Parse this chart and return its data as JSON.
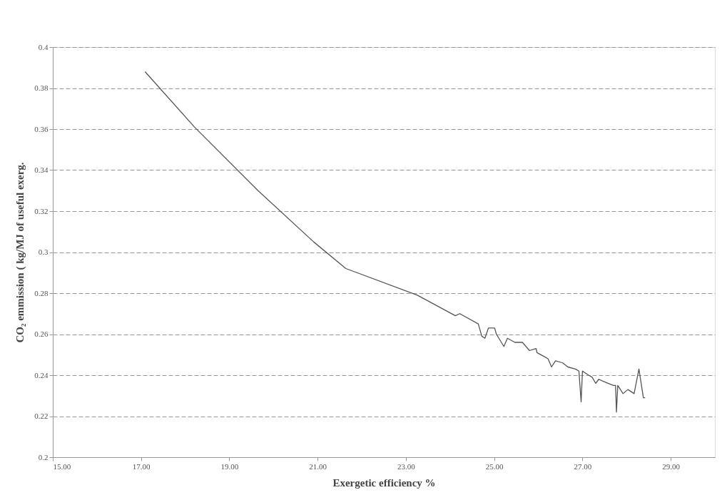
{
  "chart_data": {
    "type": "line",
    "xlabel": "Exergetic efficiency %",
    "ylabel": "CO₂ emmission ( kg/MJ of useful exerg.",
    "x": [
      17.09,
      18.21,
      19.65,
      20.91,
      21.64,
      23.26,
      24.12,
      24.22,
      24.64,
      24.72,
      24.79,
      24.87,
      25.01,
      25.05,
      25.22,
      25.3,
      25.47,
      25.64,
      25.8,
      25.95,
      25.97,
      26.14,
      26.22,
      26.3,
      26.39,
      26.55,
      26.67,
      26.84,
      26.92,
      26.97,
      27.0,
      27.14,
      27.22,
      27.3,
      27.37,
      27.47,
      27.7,
      27.75,
      27.77,
      27.8,
      27.92,
      28.03,
      28.17,
      28.28,
      28.38,
      28.42
    ],
    "series": [
      {
        "color": "#555555",
        "values": [
          0.388,
          0.361,
          0.33,
          0.305,
          0.292,
          0.279,
          0.269,
          0.27,
          0.265,
          0.259,
          0.258,
          0.263,
          0.263,
          0.26,
          0.254,
          0.258,
          0.256,
          0.256,
          0.252,
          0.253,
          0.251,
          0.249,
          0.248,
          0.244,
          0.247,
          0.246,
          0.244,
          0.243,
          0.242,
          0.227,
          0.242,
          0.24,
          0.239,
          0.236,
          0.238,
          0.237,
          0.235,
          0.235,
          0.222,
          0.235,
          0.231,
          0.233,
          0.231,
          0.243,
          0.229,
          0.229
        ]
      }
    ],
    "xlim": [
      15,
      30
    ],
    "xticks": [
      {
        "value": 15,
        "label": "15.00"
      },
      {
        "value": 17,
        "label": "17.00"
      },
      {
        "value": 19,
        "label": "19.00"
      },
      {
        "value": 21,
        "label": "21.00"
      },
      {
        "value": 23,
        "label": "23.00"
      },
      {
        "value": 25,
        "label": "25.00"
      },
      {
        "value": 27,
        "label": "27.00"
      },
      {
        "value": 29,
        "label": "29.00"
      }
    ],
    "ylim": [
      0.2,
      0.4
    ],
    "yticks": [
      0.2,
      0.22,
      0.24,
      0.26,
      0.28,
      0.3,
      0.32,
      0.34,
      0.36,
      0.38,
      0.4
    ],
    "grid": "y",
    "marker": "none",
    "line_style": "solid"
  }
}
